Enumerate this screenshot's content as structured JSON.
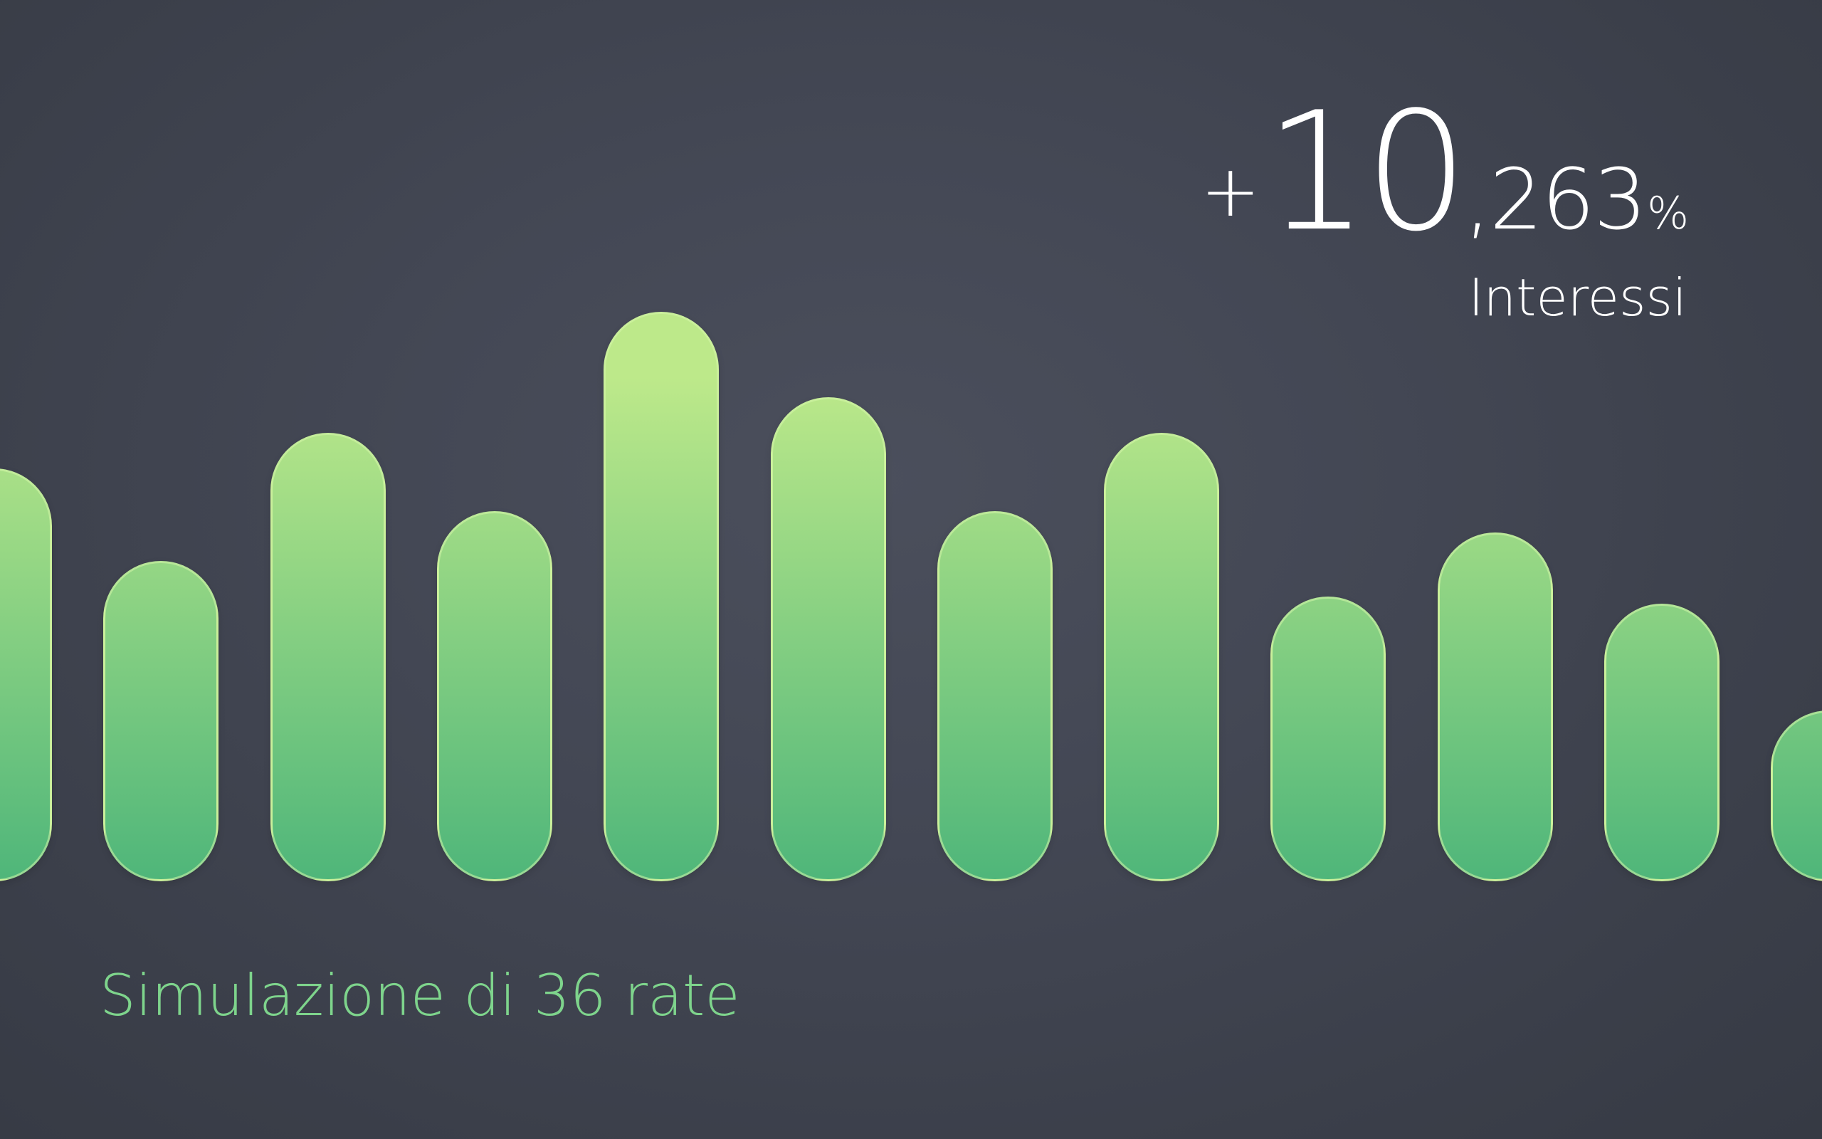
{
  "headline": {
    "sign": "+",
    "integer": "10",
    "decimal": ",263",
    "percent": "%"
  },
  "interest_label": "Interessi",
  "caption": "Simulazione di 36 rate",
  "colors": {
    "background": "#40444f",
    "bar_top": "#bde98a",
    "bar_bottom": "#4fb67a",
    "caption": "#7ed48c",
    "headline": "#ffffff"
  },
  "chart_data": {
    "type": "bar",
    "values": [
      0.58,
      0.45,
      0.63,
      0.52,
      0.8,
      0.68,
      0.52,
      0.63,
      0.4,
      0.49,
      0.39,
      0.24
    ],
    "ylim": [
      0,
      1
    ],
    "grid": false,
    "legend": "none"
  }
}
